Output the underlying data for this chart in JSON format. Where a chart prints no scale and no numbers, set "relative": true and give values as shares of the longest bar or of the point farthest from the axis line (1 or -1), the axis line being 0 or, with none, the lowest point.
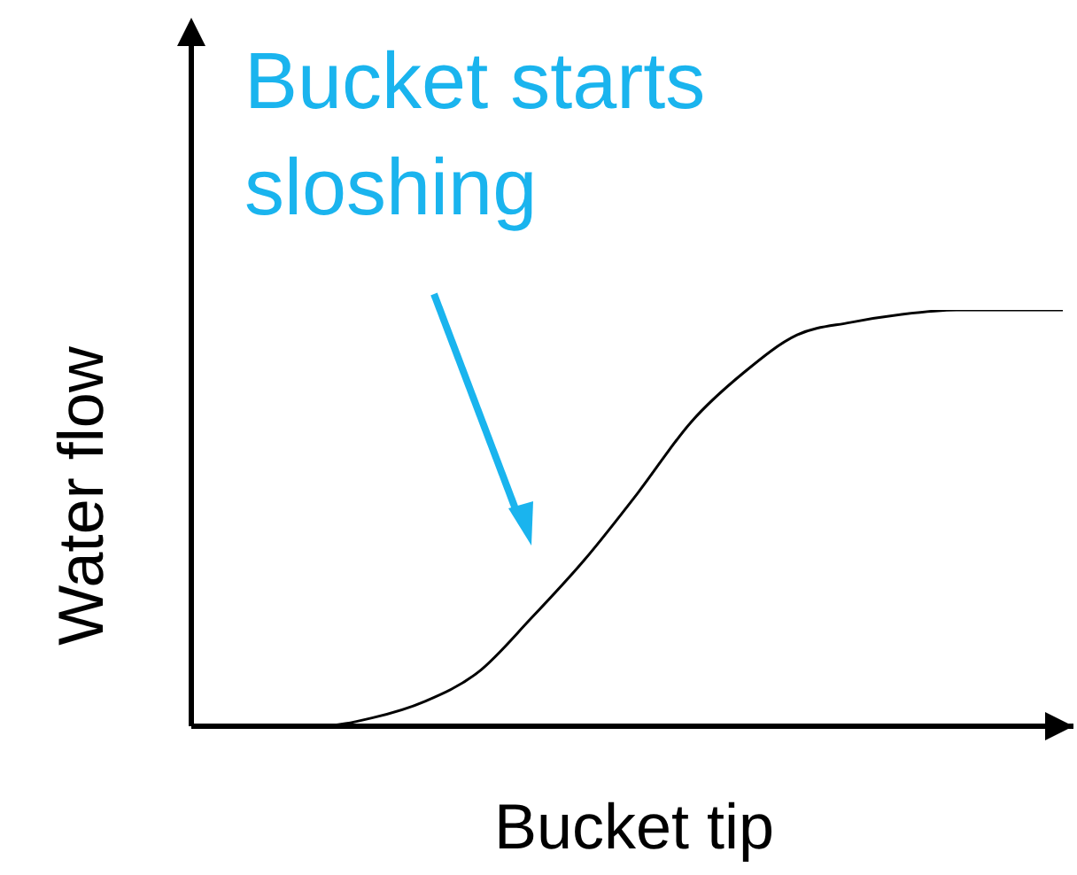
{
  "chart_data": {
    "type": "line",
    "relative": true,
    "xlabel": "Bucket tip",
    "ylabel": "Water flow",
    "annotations": [
      "Bucket starts sloshing"
    ],
    "categories": [
      null,
      null,
      null,
      null,
      null,
      null,
      null,
      null,
      null,
      null,
      null,
      null,
      null,
      null,
      null,
      null,
      null
    ],
    "series": [
      {
        "color": "#000000",
        "values": [
          0,
          0,
          0,
          0.02,
          0.06,
          0.13,
          0.26,
          0.4,
          0.56,
          0.73,
          0.85,
          0.94,
          0.97,
          0.99,
          1,
          1,
          1
        ]
      }
    ]
  }
}
